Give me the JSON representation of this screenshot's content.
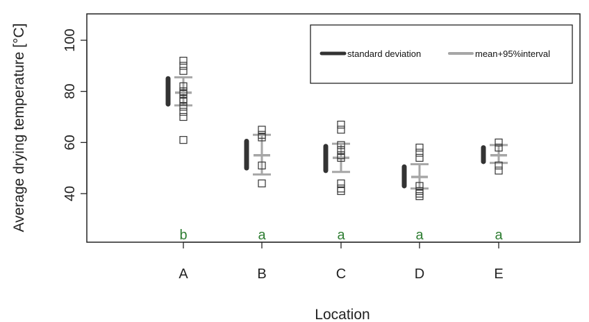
{
  "chart_data": {
    "type": "scatter",
    "xlabel": "Location",
    "ylabel": "Average drying temperature [°C]",
    "ylim": [
      20,
      112
    ],
    "yticks": [
      40,
      60,
      80,
      100
    ],
    "categories": [
      "A",
      "B",
      "C",
      "D",
      "E"
    ],
    "legend": {
      "placement": "top-right",
      "entries": [
        {
          "label": "standard deviation",
          "color": "#333333"
        },
        {
          "label": "mean+95%interval",
          "color": "#a6a6a6"
        }
      ]
    },
    "groups": [
      {
        "category": "A",
        "letter": "b",
        "points": [
          92,
          90,
          88,
          82,
          80,
          79,
          77,
          76,
          74,
          72,
          70,
          61
        ],
        "mean": 79.5,
        "sd": [
          75,
          85
        ],
        "ci": [
          74.5,
          85.5
        ]
      },
      {
        "category": "B",
        "letter": "a",
        "points": [
          65,
          63,
          62,
          51,
          44
        ],
        "mean": 55,
        "sd": [
          50,
          60.5
        ],
        "ci": [
          47.5,
          63
        ]
      },
      {
        "category": "C",
        "letter": "a",
        "points": [
          67,
          65,
          59,
          57,
          55,
          54,
          44,
          42,
          41
        ],
        "mean": 54,
        "sd": [
          49,
          58.5
        ],
        "ci": [
          48.5,
          59.5
        ]
      },
      {
        "category": "D",
        "letter": "a",
        "points": [
          58,
          56,
          54,
          43,
          41,
          40,
          39
        ],
        "mean": 46.5,
        "sd": [
          43,
          50.5
        ],
        "ci": [
          42,
          51.5
        ]
      },
      {
        "category": "E",
        "letter": "a",
        "points": [
          60,
          58,
          51,
          49
        ],
        "mean": 55,
        "sd": [
          52.5,
          58
        ],
        "ci": [
          52,
          59
        ]
      }
    ],
    "colors": {
      "sd": "#333333",
      "ci": "#a6a6a6",
      "points": "#333333",
      "letters": "#2e7d32"
    }
  }
}
